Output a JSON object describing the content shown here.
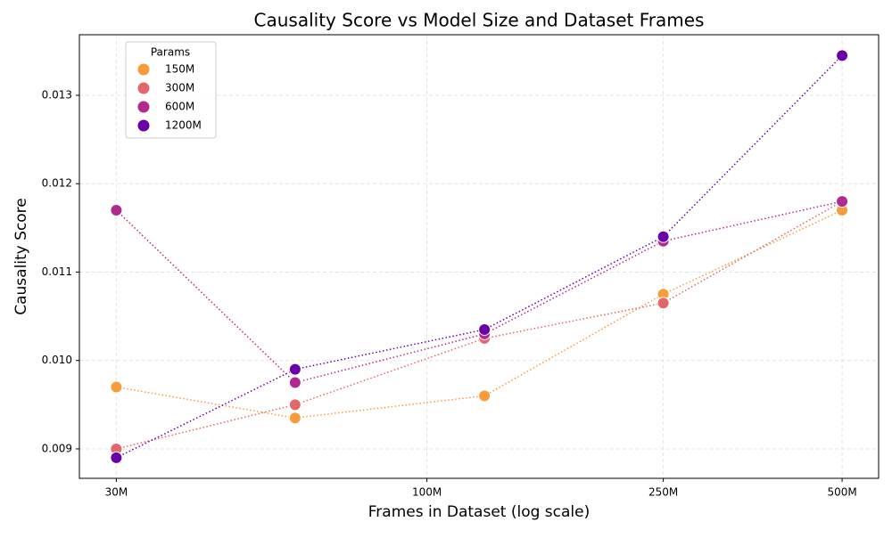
{
  "chart_data": {
    "type": "line",
    "title": "Causality Score vs Model Size and Dataset Frames",
    "x_label": "Frames in Dataset (log scale)",
    "y_label": "Causality Score",
    "x": [
      30000000,
      60000000,
      125000000,
      250000000,
      500000000
    ],
    "x_scale": "log",
    "xlim": [
      26000000,
      576000000
    ],
    "xticks": [
      {
        "value": 30000000,
        "label": "30M"
      },
      {
        "value": 100000000,
        "label": "100M"
      },
      {
        "value": 250000000,
        "label": "250M"
      },
      {
        "value": 500000000,
        "label": "500M"
      }
    ],
    "ylim": [
      0.008667,
      0.013685
    ],
    "yticks": [
      0.009,
      {
        "value": 0.01,
        "label": "0.010"
      },
      0.011,
      0.012,
      0.013
    ],
    "grid": true,
    "legend_title": "Params",
    "legend_position": "upper-left",
    "series": [
      {
        "name": "150M",
        "color": "#f89c3b",
        "values": [
          0.0097,
          0.00935,
          0.0096,
          0.01075,
          0.0117
        ]
      },
      {
        "name": "300M",
        "color": "#e3676a",
        "values": [
          0.009,
          0.0095,
          0.01025,
          0.01065,
          0.0118
        ]
      },
      {
        "name": "600M",
        "color": "#b02b8f",
        "values": [
          0.0117,
          0.00975,
          0.0103,
          0.01135,
          0.0118
        ]
      },
      {
        "name": "1200M",
        "color": "#6a00a8",
        "values": [
          0.0089,
          0.0099,
          0.01035,
          0.0114,
          0.01345
        ]
      }
    ]
  }
}
